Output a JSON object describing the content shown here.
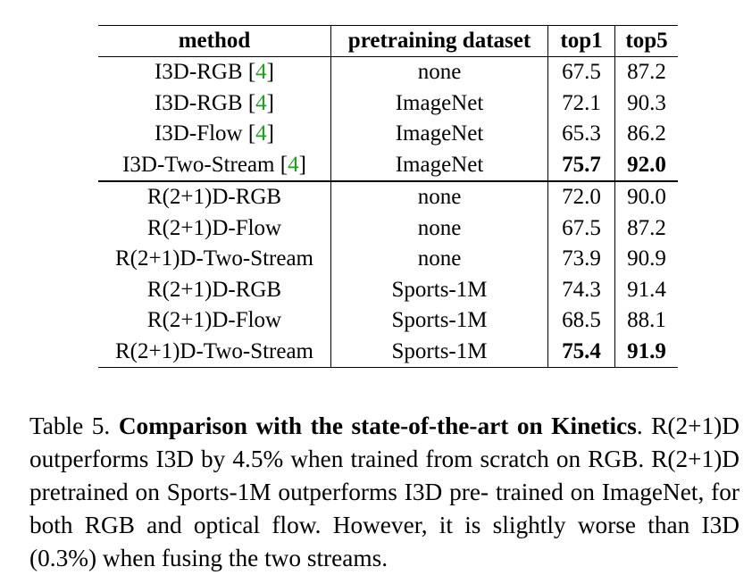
{
  "table": {
    "headers": [
      "method",
      "pretraining dataset",
      "top1",
      "top5"
    ],
    "groups": [
      {
        "name": "i3d",
        "rows": [
          {
            "method": "I3D-RGB",
            "cite": "4",
            "dataset": "none",
            "top1": "67.5",
            "top5": "87.2",
            "bold": false
          },
          {
            "method": "I3D-RGB",
            "cite": "4",
            "dataset": "ImageNet",
            "top1": "72.1",
            "top5": "90.3",
            "bold": false
          },
          {
            "method": "I3D-Flow",
            "cite": "4",
            "dataset": "ImageNet",
            "top1": "65.3",
            "top5": "86.2",
            "bold": false
          },
          {
            "method": "I3D-Two-Stream",
            "cite": "4",
            "dataset": "ImageNet",
            "top1": "75.7",
            "top5": "92.0",
            "bold": true
          }
        ]
      },
      {
        "name": "r21d",
        "rows": [
          {
            "method": "R(2+1)D-RGB",
            "cite": "",
            "dataset": "none",
            "top1": "72.0",
            "top5": "90.0",
            "bold": false
          },
          {
            "method": "R(2+1)D-Flow",
            "cite": "",
            "dataset": "none",
            "top1": "67.5",
            "top5": "87.2",
            "bold": false
          },
          {
            "method": "R(2+1)D-Two-Stream",
            "cite": "",
            "dataset": "none",
            "top1": "73.9",
            "top5": "90.9",
            "bold": false
          },
          {
            "method": "R(2+1)D-RGB",
            "cite": "",
            "dataset": "Sports-1M",
            "top1": "74.3",
            "top5": "91.4",
            "bold": false
          },
          {
            "method": "R(2+1)D-Flow",
            "cite": "",
            "dataset": "Sports-1M",
            "top1": "68.5",
            "top5": "88.1",
            "bold": false
          },
          {
            "method": "R(2+1)D-Two-Stream",
            "cite": "",
            "dataset": "Sports-1M",
            "top1": "75.4",
            "top5": "91.9",
            "bold": true
          }
        ]
      }
    ],
    "cite_color": "#1aa31a"
  },
  "caption": {
    "label": "Table 5.",
    "title": "Comparison with the state-of-the-art on Kinetics",
    "body_1": ". R(2+1)D outperforms I3D by ",
    "value_1": "4.5%",
    "body_2": " when trained from scratch on RGB. R(2+1)D pretrained on Sports-1M outperforms I3D pre- trained on ImageNet, for both RGB and optical flow. However, it is slightly worse than I3D (",
    "value_2": "0.3%",
    "body_3": ") when fusing the two streams."
  }
}
